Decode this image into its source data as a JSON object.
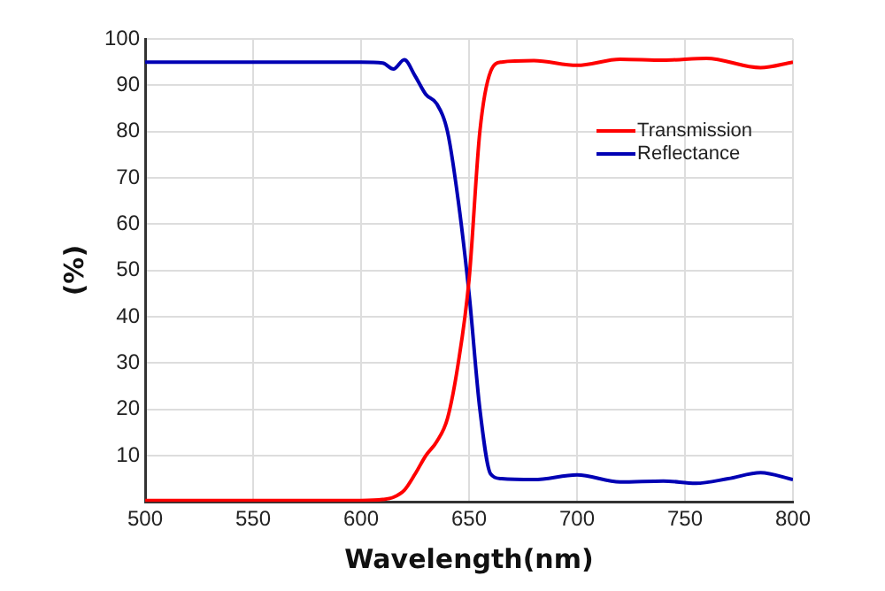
{
  "chart_data": {
    "type": "line",
    "xlabel": "Wavelength(nm)",
    "ylabel": "(%)",
    "xlim": [
      500,
      800
    ],
    "xticks": [
      500,
      550,
      600,
      650,
      700,
      750,
      800
    ],
    "ylim": [
      0,
      100
    ],
    "yticks": [
      {
        "value": 0,
        "label": null
      },
      10,
      20,
      30,
      40,
      50,
      60,
      70,
      80,
      90,
      100
    ],
    "grid": true,
    "legend": "top right",
    "marker": "none",
    "line_style": "solid",
    "series": [
      {
        "name": "Transmission",
        "color": "#ff0000",
        "x": [
          500,
          550,
          600,
          610,
          615,
          620,
          625,
          630,
          635,
          640,
          645,
          650,
          655,
          660,
          665,
          680,
          700,
          720,
          740,
          760,
          785,
          800
        ],
        "values": [
          0.3,
          0.3,
          0.3,
          0.5,
          1,
          2.5,
          6,
          10,
          13,
          18,
          30,
          48,
          80,
          93,
          95,
          95.3,
          94.3,
          95.6,
          95.4,
          95.8,
          93.8,
          95
        ]
      },
      {
        "name": "Reflectance",
        "color": "#0000b4",
        "x": [
          500,
          550,
          600,
          610,
          615,
          620,
          625,
          630,
          635,
          640,
          645,
          650,
          655,
          660,
          665,
          680,
          700,
          720,
          740,
          755,
          770,
          785,
          800
        ],
        "values": [
          95,
          95,
          95,
          94.8,
          93.5,
          95.5,
          92,
          88,
          86,
          80,
          65,
          45,
          20,
          6,
          5,
          4.8,
          5.8,
          4.3,
          4.5,
          4,
          5,
          6.3,
          4.8
        ]
      }
    ]
  }
}
